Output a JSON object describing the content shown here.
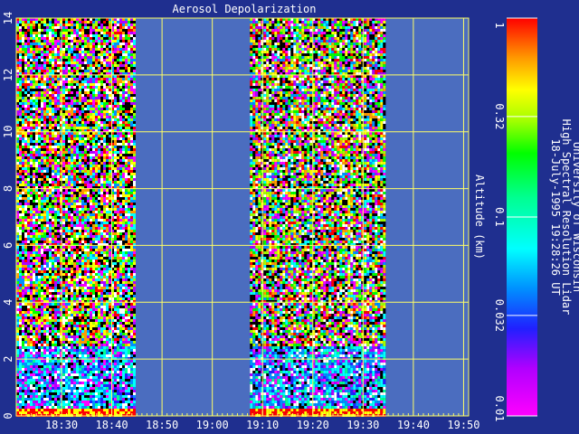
{
  "chart_data": {
    "type": "heatmap",
    "title": "Aerosol Depolarization",
    "ylabel": "Altitude (km)",
    "xlabel": "",
    "x_tick_labels": [
      "18:30",
      "18:40",
      "18:50",
      "19:00",
      "19:10",
      "19:20",
      "19:30",
      "19:40",
      "19:50"
    ],
    "x_ticks_min": [
      1110,
      1120,
      1130,
      1140,
      1150,
      1160,
      1170,
      1180,
      1190
    ],
    "xlim_min": [
      1101,
      1191
    ],
    "y_ticks": [
      0,
      2,
      4,
      6,
      8,
      10,
      12,
      14
    ],
    "ylim": [
      0,
      14
    ],
    "grid": true,
    "data_segments_min": [
      [
        1101,
        1124.5
      ],
      [
        1147.5,
        1174.5
      ]
    ],
    "value_description": "noisy aerosol depolarization; enhanced low values (0.03-0.1) below ~2.5 km, random noise aloft",
    "colorbar": {
      "scale": "log",
      "range": [
        0.01,
        1
      ],
      "tick_labels": [
        "1",
        "0.32",
        "0.1",
        "0.032",
        "0.01"
      ],
      "tick_values": [
        1,
        0.32,
        0.1,
        0.032,
        0.01
      ]
    },
    "annotation_lines": [
      "University of Wisconsin",
      "High Spectral Resolution Lidar",
      "18-July-1995 19:28:26 UT"
    ]
  },
  "colors": {
    "background": "#1f2f8f",
    "plot_fill": "#4b6dbf",
    "grid": "#ffff66",
    "text": "#ffffff"
  }
}
